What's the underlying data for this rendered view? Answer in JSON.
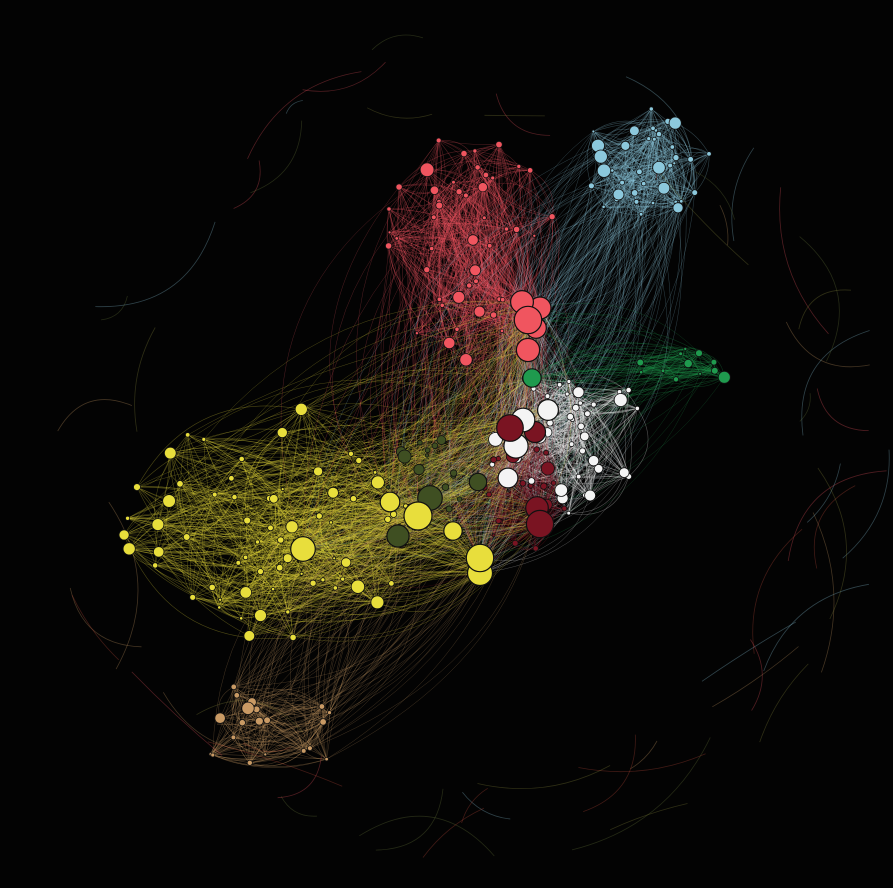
{
  "graph": {
    "background": "#030303",
    "node_stroke": "#111111",
    "edge_opacity": 0.32,
    "communities": [
      {
        "name": "red",
        "color": "#f0555f",
        "node_count": 48,
        "hub_count": 5
      },
      {
        "name": "light-blue",
        "color": "#8cc8dc",
        "node_count": 38,
        "hub_count": 0
      },
      {
        "name": "green",
        "color": "#1f9a4e",
        "node_count": 12,
        "hub_count": 1
      },
      {
        "name": "white",
        "color": "#f4f4f4",
        "node_count": 40,
        "hub_count": 4
      },
      {
        "name": "dark-red",
        "color": "#7a1422",
        "node_count": 22,
        "hub_count": 4
      },
      {
        "name": "olive",
        "color": "#3f4f22",
        "node_count": 18,
        "hub_count": 4
      },
      {
        "name": "yellow",
        "color": "#e8de3c",
        "node_count": 70,
        "hub_count": 6
      },
      {
        "name": "tan",
        "color": "#c99a64",
        "node_count": 20,
        "hub_count": 0
      }
    ]
  }
}
